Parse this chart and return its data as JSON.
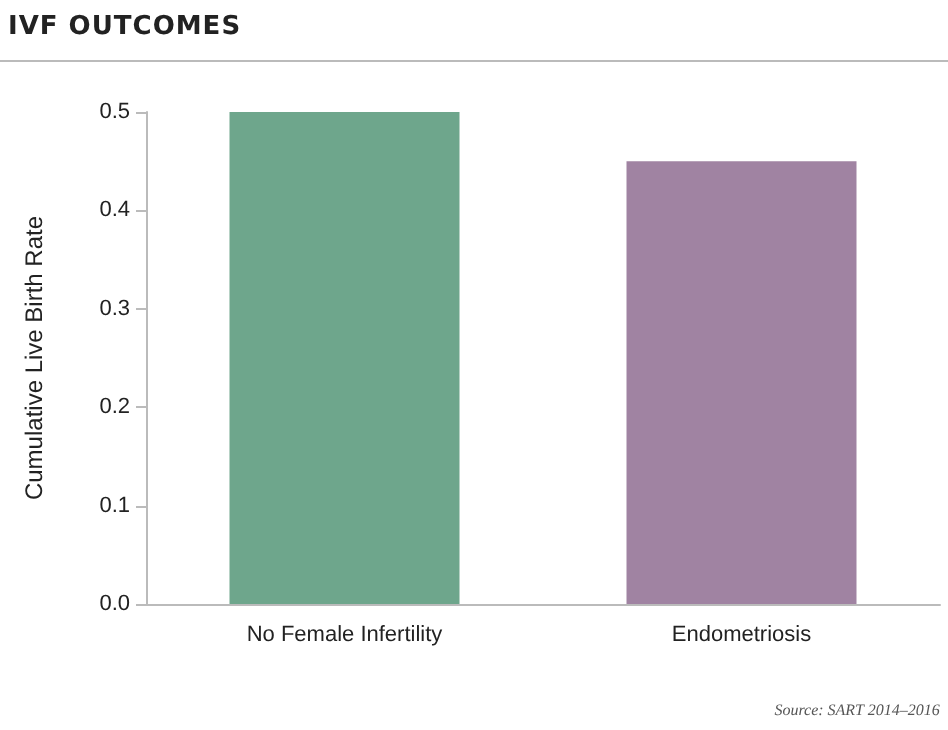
{
  "chart_data": {
    "type": "bar",
    "title": "IVF OUTCOMES",
    "ylabel": "Cumulative Live Birth Rate",
    "categories": [
      "No Female Infertility",
      "Endometriosis"
    ],
    "values": [
      0.5,
      0.45
    ],
    "colors": [
      "#6ea68c",
      "#a083a2"
    ],
    "ylim": [
      0,
      0.5
    ],
    "yticks": [
      {
        "value": 0,
        "label": "0.0"
      },
      0.1,
      0.2,
      0.3,
      0.4,
      0.5
    ],
    "grid": false,
    "annotations": [
      "Source: SART 2014–2016"
    ]
  }
}
